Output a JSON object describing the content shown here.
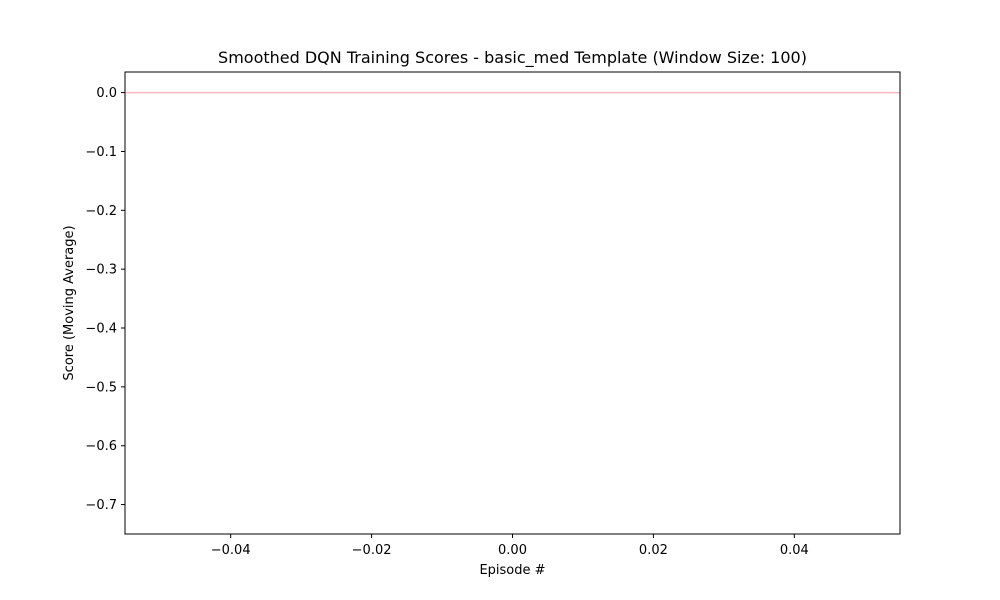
{
  "chart_data": {
    "type": "line",
    "title": "Smoothed DQN Training Scores - basic_med Template (Window Size: 100)",
    "xlabel": "Episode #",
    "ylabel": "Score (Moving Average)",
    "xlim": [
      -0.055,
      0.055
    ],
    "ylim": [
      -0.75,
      0.035
    ],
    "xticks": [
      -0.04,
      -0.02,
      0.0,
      0.02,
      0.04
    ],
    "xtick_labels": [
      "−0.04",
      "−0.02",
      "0.00",
      "0.02",
      "0.04"
    ],
    "yticks": [
      0.0,
      -0.1,
      -0.2,
      -0.3,
      -0.4,
      -0.5,
      -0.6,
      -0.7
    ],
    "ytick_labels": [
      "0.0",
      "−0.1",
      "−0.2",
      "−0.3",
      "−0.4",
      "−0.5",
      "−0.6",
      "−0.7"
    ],
    "grid": false,
    "series": [
      {
        "x": [
          -0.055,
          0.055
        ],
        "values": [
          0.0,
          0.0
        ],
        "color": "#ffb6c1",
        "style": "horizontal-line"
      }
    ]
  }
}
